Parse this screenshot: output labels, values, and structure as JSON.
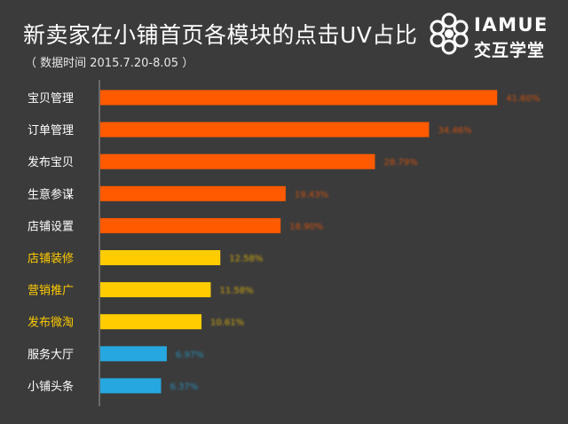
{
  "header": {
    "title": "新卖家在小铺首页各模块的点击UV占比",
    "subtitle": "（ 数据时间 2015.7.20-8.05 ）"
  },
  "logo": {
    "name_en": "IAMUE",
    "name_cn": "交互学堂",
    "icon": "molecule-logo-icon"
  },
  "colors": {
    "background": "#3b3b3b",
    "orange": "#ff5a00",
    "yellow": "#ffcc00",
    "blue": "#26a7e0",
    "label_white": "#ffffff",
    "label_yellow": "#ffcc00"
  },
  "chart_data": {
    "type": "bar",
    "orientation": "horizontal",
    "title": "新卖家在小铺首页各模块的点击UV占比",
    "subtitle": "（ 数据时间 2015.7.20-8.05 ）",
    "categories": [
      "宝贝管理",
      "订单管理",
      "发布宝贝",
      "生意参谋",
      "店铺设置",
      "店铺装修",
      "营销推广",
      "发布微淘",
      "服务大厅",
      "小铺头条"
    ],
    "values": [
      41.6,
      34.46,
      28.79,
      19.43,
      18.9,
      12.58,
      11.58,
      10.61,
      6.97,
      6.37
    ],
    "value_labels": [
      "41.60%",
      "34.46%",
      "28.79%",
      "19.43%",
      "18.90%",
      "12.58%",
      "11.58%",
      "10.61%",
      "6.97%",
      "6.37%"
    ],
    "bar_colors": [
      "#ff5a00",
      "#ff5a00",
      "#ff5a00",
      "#ff5a00",
      "#ff5a00",
      "#ffcc00",
      "#ffcc00",
      "#ffcc00",
      "#26a7e0",
      "#26a7e0"
    ],
    "label_colors": [
      "#ffffff",
      "#ffffff",
      "#ffffff",
      "#ffffff",
      "#ffffff",
      "#ffcc00",
      "#ffcc00",
      "#ffcc00",
      "#ffffff",
      "#ffffff"
    ],
    "xlim": [
      0,
      45
    ],
    "grid": false,
    "legend": "none"
  }
}
